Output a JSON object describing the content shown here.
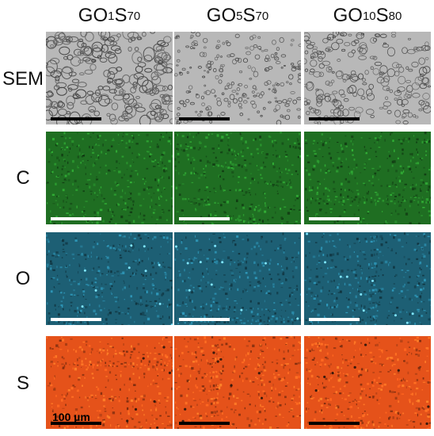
{
  "columns": [
    {
      "base": "GO",
      "sub1": "1",
      "mid": "S",
      "sub2": "70"
    },
    {
      "base": "GO",
      "sub1": "5",
      "mid": "S",
      "sub2": "70"
    },
    {
      "base": "GO",
      "sub1": "10",
      "mid": "S",
      "sub2": "80"
    }
  ],
  "rows": [
    {
      "label": "SEM",
      "color": "#b8b8b8",
      "scalebar_color": "#000000"
    },
    {
      "label": "C",
      "color": "#1f6e22",
      "scalebar_color": "#ffffff"
    },
    {
      "label": "O",
      "color": "#1d5f74",
      "scalebar_color": "#ffffff"
    },
    {
      "label": "S",
      "color": "#e5521a",
      "scalebar_color": "#000000"
    }
  ],
  "scale_label": "100 µm"
}
